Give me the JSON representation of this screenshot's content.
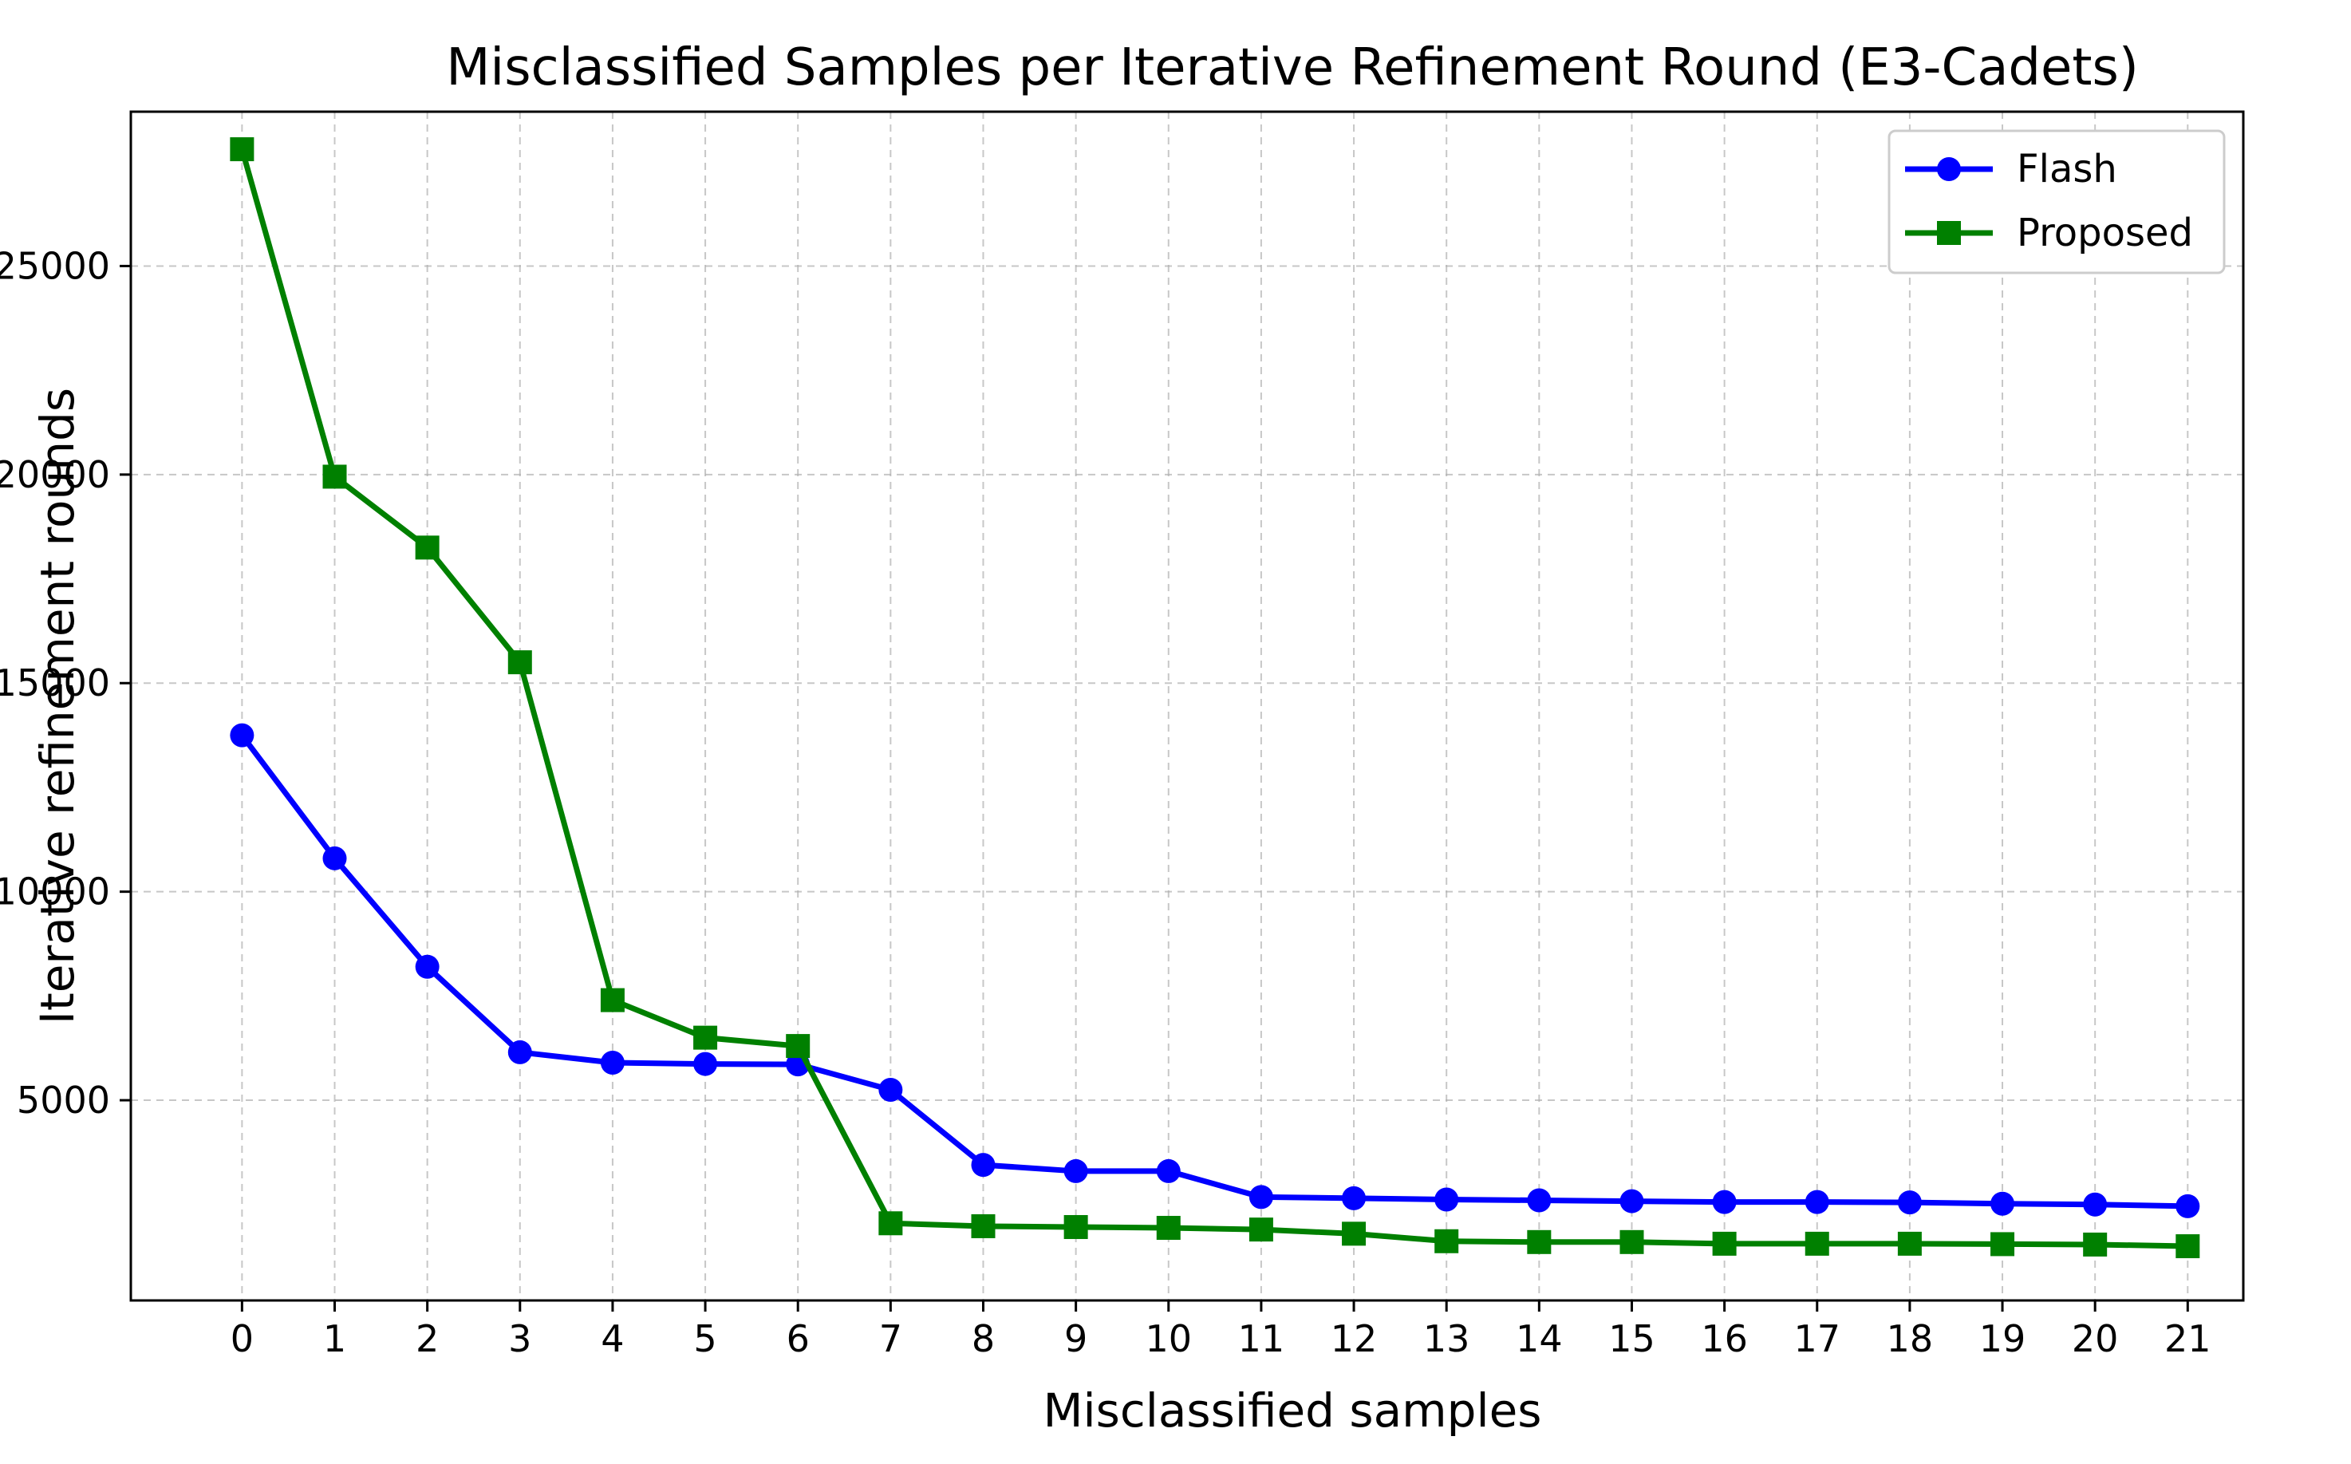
{
  "chart_data": {
    "type": "line",
    "title": "Misclassified Samples per Iterative Refinement Round (E3-Cadets)",
    "xlabel": "Misclassified samples",
    "ylabel": "Iterative refinement rounds",
    "x": [
      0,
      1,
      2,
      3,
      4,
      5,
      6,
      7,
      8,
      9,
      10,
      11,
      12,
      13,
      14,
      15,
      16,
      17,
      18,
      19,
      20,
      21
    ],
    "xticks": [
      "0",
      "1",
      "2",
      "3",
      "4",
      "5",
      "6",
      "7",
      "8",
      "9",
      "10",
      "11",
      "12",
      "13",
      "14",
      "15",
      "16",
      "17",
      "18",
      "19",
      "20",
      "21"
    ],
    "yticks": [
      5000,
      10000,
      15000,
      20000,
      25000
    ],
    "ytick_labels": [
      "5000",
      "10000",
      "15000",
      "20000",
      "25000"
    ],
    "xlim": [
      -1.2,
      21.6
    ],
    "ylim": [
      200,
      28700
    ],
    "grid": true,
    "legend_position": "upper right",
    "series": [
      {
        "name": "Flash",
        "color": "#0000ff",
        "marker": "circle",
        "values": [
          13750,
          10800,
          8200,
          6150,
          5900,
          5870,
          5860,
          5250,
          3450,
          3300,
          3300,
          2680,
          2650,
          2620,
          2600,
          2580,
          2560,
          2560,
          2550,
          2520,
          2500,
          2460
        ]
      },
      {
        "name": "Proposed",
        "color": "#008000",
        "marker": "square",
        "values": [
          27800,
          19950,
          18250,
          15500,
          7400,
          6500,
          6300,
          2050,
          1980,
          1960,
          1940,
          1900,
          1800,
          1620,
          1600,
          1600,
          1560,
          1560,
          1560,
          1550,
          1540,
          1500
        ]
      }
    ]
  }
}
